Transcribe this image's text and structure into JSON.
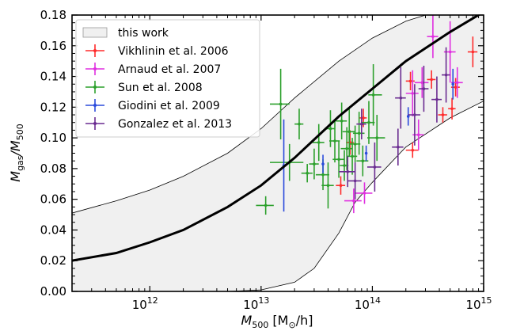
{
  "chart_data": {
    "type": "scatter",
    "xlabel_main": "M",
    "xlabel_sub": "500",
    "xlabel_unit_pre": " [M",
    "xlabel_unit_sub": "⊙",
    "xlabel_unit_post": "/h]",
    "ylabel_main": "M",
    "ylabel_sub1": "gas",
    "ylabel_mid": "/M",
    "ylabel_sub2": "500",
    "x_scale": "log",
    "xlim": [
      200000000000.0,
      1000000000000000.0
    ],
    "ylim": [
      0.0,
      0.18
    ],
    "yticks": [
      "0.00",
      "0.02",
      "0.04",
      "0.06",
      "0.08",
      "0.10",
      "0.12",
      "0.14",
      "0.16",
      "0.18"
    ],
    "xticks": [
      {
        "base": "10",
        "exp": "12",
        "value": 1000000000000.0
      },
      {
        "base": "10",
        "exp": "13",
        "value": 10000000000000.0
      },
      {
        "base": "10",
        "exp": "14",
        "value": 100000000000000.0
      },
      {
        "base": "10",
        "exp": "15",
        "value": 1000000000000000.0
      }
    ],
    "legend_position": "top-left",
    "legend": [
      {
        "label": "this work",
        "kind": "band"
      },
      {
        "label": "Vikhlinin et al. 2006",
        "color": "#ff2b2b"
      },
      {
        "label": "Arnaud et al. 2007",
        "color": "#e030e0"
      },
      {
        "label": "Sun et al. 2008",
        "color": "#2ca02c"
      },
      {
        "label": "Giodini et al. 2009",
        "color": "#2b4bdc"
      },
      {
        "label": "Gonzalez et al. 2013",
        "color": "#6a2c91"
      }
    ],
    "model_line": {
      "x": [
        200000000000.0,
        500000000000.0,
        1000000000000.0,
        2000000000000.0,
        5000000000000.0,
        10000000000000.0,
        20000000000000.0,
        50000000000000.0,
        100000000000000.0,
        200000000000000.0,
        500000000000000.0,
        1000000000000000.0
      ],
      "y": [
        0.02,
        0.025,
        0.032,
        0.04,
        0.055,
        0.069,
        0.087,
        0.114,
        0.132,
        0.15,
        0.169,
        0.182
      ]
    },
    "band_upper": {
      "x": [
        200000000000.0,
        500000000000.0,
        1000000000000.0,
        2000000000000.0,
        5000000000000.0,
        10000000000000.0,
        20000000000000.0,
        50000000000000.0,
        100000000000000.0,
        200000000000000.0,
        500000000000000.0,
        1000000000000000.0
      ],
      "y": [
        0.051,
        0.059,
        0.066,
        0.075,
        0.09,
        0.106,
        0.126,
        0.15,
        0.165,
        0.176,
        0.185,
        0.19
      ]
    },
    "band_lower": {
      "x": [
        200000000000.0,
        1000000000000.0,
        5000000000000.0,
        10000000000000.0,
        20000000000000.0,
        30000000000000.0,
        50000000000000.0,
        70000000000000.0,
        100000000000000.0,
        200000000000000.0,
        500000000000000.0,
        1000000000000000.0
      ],
      "y": [
        0.0,
        0.0,
        0.0,
        0.001,
        0.006,
        0.015,
        0.038,
        0.058,
        0.071,
        0.094,
        0.113,
        0.124
      ]
    },
    "series": [
      {
        "name": "Vikhlinin et al. 2006",
        "color": "#ff2b2b",
        "points": [
          {
            "x": 52000000000000.0,
            "y": 0.069,
            "xerr": [
              5000000000000.0,
              5000000000000.0
            ],
            "yerr": [
              0.006,
              0.006
            ]
          },
          {
            "x": 63000000000000.0,
            "y": 0.097,
            "xerr": [
              5000000000000.0,
              5000000000000.0
            ],
            "yerr": [
              0.008,
              0.008
            ]
          },
          {
            "x": 83000000000000.0,
            "y": 0.113,
            "xerr": [
              6000000000000.0,
              6000000000000.0
            ],
            "yerr": [
              0.006,
              0.006
            ]
          },
          {
            "x": 230000000000000.0,
            "y": 0.092,
            "xerr": [
              30000000000000.0,
              30000000000000.0
            ],
            "yerr": [
              0.005,
              0.005
            ]
          },
          {
            "x": 220000000000000.0,
            "y": 0.137,
            "xerr": [
              20000000000000.0,
              20000000000000.0
            ],
            "yerr": [
              0.006,
              0.006
            ]
          },
          {
            "x": 340000000000000.0,
            "y": 0.138,
            "xerr": [
              30000000000000.0,
              30000000000000.0
            ],
            "yerr": [
              0.006,
              0.006
            ]
          },
          {
            "x": 430000000000000.0,
            "y": 0.115,
            "xerr": [
              40000000000000.0,
              40000000000000.0
            ],
            "yerr": [
              0.005,
              0.005
            ]
          },
          {
            "x": 520000000000000.0,
            "y": 0.119,
            "xerr": [
              40000000000000.0,
              40000000000000.0
            ],
            "yerr": [
              0.007,
              0.007
            ]
          },
          {
            "x": 560000000000000.0,
            "y": 0.133,
            "xerr": [
              50000000000000.0,
              50000000000000.0
            ],
            "yerr": [
              0.006,
              0.006
            ]
          },
          {
            "x": 800000000000000.0,
            "y": 0.156,
            "xerr": [
              80000000000000.0,
              80000000000000.0
            ],
            "yerr": [
              0.01,
              0.01
            ]
          }
        ]
      },
      {
        "name": "Arnaud et al. 2007",
        "color": "#e030e0",
        "points": [
          {
            "x": 68000000000000.0,
            "y": 0.059,
            "xerr": [
              12000000000000.0,
              12000000000000.0
            ],
            "yerr": [
              0.008,
              0.008
            ]
          },
          {
            "x": 85000000000000.0,
            "y": 0.064,
            "xerr": [
              15000000000000.0,
              15000000000000.0
            ],
            "yerr": [
              0.007,
              0.007
            ]
          },
          {
            "x": 230000000000000.0,
            "y": 0.129,
            "xerr": [
              30000000000000.0,
              30000000000000.0
            ],
            "yerr": [
              0.015,
              0.015
            ]
          },
          {
            "x": 260000000000000.0,
            "y": 0.102,
            "xerr": [
              30000000000000.0,
              30000000000000.0
            ],
            "yerr": [
              0.01,
              0.01
            ]
          },
          {
            "x": 280000000000000.0,
            "y": 0.136,
            "xerr": [
              40000000000000.0,
              40000000000000.0
            ],
            "yerr": [
              0.01,
              0.01
            ]
          },
          {
            "x": 350000000000000.0,
            "y": 0.166,
            "xerr": [
              40000000000000.0,
              40000000000000.0
            ],
            "yerr": [
              0.014,
              0.014
            ]
          },
          {
            "x": 500000000000000.0,
            "y": 0.156,
            "xerr": [
              60000000000000.0,
              60000000000000.0
            ],
            "yerr": [
              0.02,
              0.02
            ]
          },
          {
            "x": 580000000000000.0,
            "y": 0.136,
            "xerr": [
              70000000000000.0,
              70000000000000.0
            ],
            "yerr": [
              0.01,
              0.01
            ]
          }
        ]
      },
      {
        "name": "Sun et al. 2008",
        "color": "#2ca02c",
        "points": [
          {
            "x": 11000000000000.0,
            "y": 0.056,
            "xerr": [
              2000000000000.0,
              2000000000000.0
            ],
            "yerr": [
              0.006,
              0.006
            ]
          },
          {
            "x": 15000000000000.0,
            "y": 0.122,
            "xerr": [
              3000000000000.0,
              3000000000000.0
            ],
            "yerr": [
              0.023,
              0.023
            ]
          },
          {
            "x": 18000000000000.0,
            "y": 0.084,
            "xerr": [
              6000000000000.0,
              6000000000000.0
            ],
            "yerr": [
              0.012,
              0.012
            ]
          },
          {
            "x": 22000000000000.0,
            "y": 0.109,
            "xerr": [
              2000000000000.0,
              2000000000000.0
            ],
            "yerr": [
              0.01,
              0.01
            ]
          },
          {
            "x": 26000000000000.0,
            "y": 0.077,
            "xerr": [
              3000000000000.0,
              3000000000000.0
            ],
            "yerr": [
              0.006,
              0.006
            ]
          },
          {
            "x": 30000000000000.0,
            "y": 0.083,
            "xerr": [
              3000000000000.0,
              3000000000000.0
            ],
            "yerr": [
              0.01,
              0.01
            ]
          },
          {
            "x": 33000000000000.0,
            "y": 0.097,
            "xerr": [
              4000000000000.0,
              4000000000000.0
            ],
            "yerr": [
              0.012,
              0.012
            ]
          },
          {
            "x": 36000000000000.0,
            "y": 0.076,
            "xerr": [
              5000000000000.0,
              5000000000000.0
            ],
            "yerr": [
              0.01,
              0.01
            ]
          },
          {
            "x": 40000000000000.0,
            "y": 0.069,
            "xerr": [
              5000000000000.0,
              5000000000000.0
            ],
            "yerr": [
              0.015,
              0.015
            ]
          },
          {
            "x": 42000000000000.0,
            "y": 0.106,
            "xerr": [
              4000000000000.0,
              4000000000000.0
            ],
            "yerr": [
              0.012,
              0.012
            ]
          },
          {
            "x": 46000000000000.0,
            "y": 0.098,
            "xerr": [
              5000000000000.0,
              5000000000000.0
            ],
            "yerr": [
              0.014,
              0.014
            ]
          },
          {
            "x": 50000000000000.0,
            "y": 0.086,
            "xerr": [
              6000000000000.0,
              6000000000000.0
            ],
            "yerr": [
              0.012,
              0.012
            ]
          },
          {
            "x": 53000000000000.0,
            "y": 0.111,
            "xerr": [
              6000000000000.0,
              6000000000000.0
            ],
            "yerr": [
              0.012,
              0.012
            ]
          },
          {
            "x": 56000000000000.0,
            "y": 0.082,
            "xerr": [
              5000000000000.0,
              5000000000000.0
            ],
            "yerr": [
              0.01,
              0.01
            ]
          },
          {
            "x": 59000000000000.0,
            "y": 0.093,
            "xerr": [
              7000000000000.0,
              7000000000000.0
            ],
            "yerr": [
              0.014,
              0.014
            ]
          },
          {
            "x": 62000000000000.0,
            "y": 0.104,
            "xerr": [
              8000000000000.0,
              8000000000000.0
            ],
            "yerr": [
              0.016,
              0.016
            ]
          },
          {
            "x": 66000000000000.0,
            "y": 0.088,
            "xerr": [
              7000000000000.0,
              7000000000000.0
            ],
            "yerr": [
              0.012,
              0.012
            ]
          },
          {
            "x": 70000000000000.0,
            "y": 0.096,
            "xerr": [
              8000000000000.0,
              8000000000000.0
            ],
            "yerr": [
              0.012,
              0.012
            ]
          },
          {
            "x": 76000000000000.0,
            "y": 0.103,
            "xerr": [
              9000000000000.0,
              9000000000000.0
            ],
            "yerr": [
              0.014,
              0.014
            ]
          },
          {
            "x": 82000000000000.0,
            "y": 0.085,
            "xerr": [
              10000000000000.0,
              10000000000000.0
            ],
            "yerr": [
              0.01,
              0.01
            ]
          },
          {
            "x": 93000000000000.0,
            "y": 0.11,
            "xerr": [
              12000000000000.0,
              12000000000000.0
            ],
            "yerr": [
              0.014,
              0.014
            ]
          },
          {
            "x": 102000000000000.0,
            "y": 0.128,
            "xerr": [
              10000000000000.0,
              20000000000000.0
            ],
            "yerr": [
              0.02,
              0.02
            ]
          },
          {
            "x": 110000000000000.0,
            "y": 0.1,
            "xerr": [
              20000000000000.0,
              20000000000000.0
            ],
            "yerr": [
              0.015,
              0.015
            ]
          }
        ]
      },
      {
        "name": "Giodini et al. 2009",
        "color": "#2b4bdc",
        "points": [
          {
            "x": 16000000000000.0,
            "y": 0.082,
            "xerr": [
              0.0,
              0.0
            ],
            "yerr": [
              0.03,
              0.03
            ]
          },
          {
            "x": 36000000000000.0,
            "y": 0.083,
            "xerr": [
              0.0,
              0.0
            ],
            "yerr": [
              0.006,
              0.006
            ]
          },
          {
            "x": 88000000000000.0,
            "y": 0.09,
            "xerr": [
              0.0,
              0.0
            ],
            "yerr": [
              0.005,
              0.005
            ]
          },
          {
            "x": 210000000000000.0,
            "y": 0.114,
            "xerr": [
              0.0,
              0.0
            ],
            "yerr": [
              0.006,
              0.006
            ]
          },
          {
            "x": 530000000000000.0,
            "y": 0.135,
            "xerr": [
              0.0,
              0.0
            ],
            "yerr": [
              0.01,
              0.01
            ]
          }
        ]
      },
      {
        "name": "Gonzalez et al. 2013",
        "color": "#6a2c91",
        "points": [
          {
            "x": 60000000000000.0,
            "y": 0.078,
            "xerr": [
              10000000000000.0,
              10000000000000.0
            ],
            "yerr": [
              0.01,
              0.01
            ]
          },
          {
            "x": 70000000000000.0,
            "y": 0.072,
            "xerr": [
              10000000000000.0,
              10000000000000.0
            ],
            "yerr": [
              0.012,
              0.012
            ]
          },
          {
            "x": 80000000000000.0,
            "y": 0.109,
            "xerr": [
              8000000000000.0,
              8000000000000.0
            ],
            "yerr": [
              0.01,
              0.01
            ]
          },
          {
            "x": 105000000000000.0,
            "y": 0.081,
            "xerr": [
              15000000000000.0,
              15000000000000.0
            ],
            "yerr": [
              0.016,
              0.016
            ]
          },
          {
            "x": 170000000000000.0,
            "y": 0.094,
            "xerr": [
              20000000000000.0,
              20000000000000.0
            ],
            "yerr": [
              0.012,
              0.012
            ]
          },
          {
            "x": 180000000000000.0,
            "y": 0.126,
            "xerr": [
              20000000000000.0,
              20000000000000.0
            ],
            "yerr": [
              0.02,
              0.02
            ]
          },
          {
            "x": 240000000000000.0,
            "y": 0.115,
            "xerr": [
              30000000000000.0,
              30000000000000.0
            ],
            "yerr": [
              0.02,
              0.02
            ]
          },
          {
            "x": 290000000000000.0,
            "y": 0.132,
            "xerr": [
              30000000000000.0,
              30000000000000.0
            ],
            "yerr": [
              0.015,
              0.015
            ]
          },
          {
            "x": 380000000000000.0,
            "y": 0.125,
            "xerr": [
              40000000000000.0,
              40000000000000.0
            ],
            "yerr": [
              0.015,
              0.015
            ]
          },
          {
            "x": 460000000000000.0,
            "y": 0.141,
            "xerr": [
              40000000000000.0,
              40000000000000.0
            ],
            "yerr": [
              0.018,
              0.018
            ]
          }
        ]
      }
    ]
  }
}
